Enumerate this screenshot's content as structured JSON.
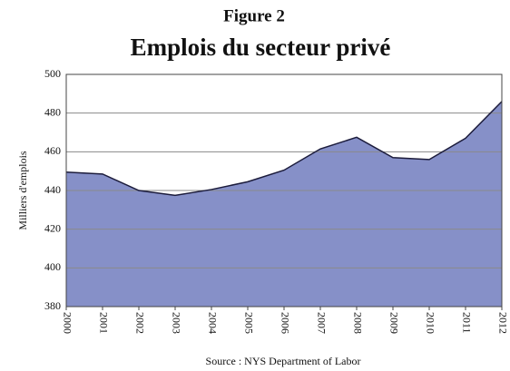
{
  "chart_data": {
    "type": "area",
    "supertitle": "Figure 2",
    "title": "Emplois du secteur privé",
    "ylabel": "Milliers d'emplois",
    "source": "Source : NYS Department of Labor",
    "x": [
      2000,
      2001,
      2002,
      2003,
      2004,
      2005,
      2006,
      2007,
      2008,
      2009,
      2010,
      2011,
      2012
    ],
    "values": [
      449.5,
      448.5,
      440,
      437.5,
      440.5,
      444.5,
      450.5,
      461.5,
      467.5,
      457,
      456,
      467,
      486
    ],
    "color": "#8690c8",
    "line_color": "#1c1c3c",
    "xlim": [
      2000,
      2012
    ],
    "xticks": [
      2000,
      2001,
      2002,
      2003,
      2004,
      2005,
      2006,
      2007,
      2008,
      2009,
      2010,
      2011,
      2012
    ],
    "ylim": [
      380,
      500
    ],
    "yticks": [
      380,
      400,
      420,
      440,
      460,
      480,
      500
    ],
    "grid": true
  }
}
